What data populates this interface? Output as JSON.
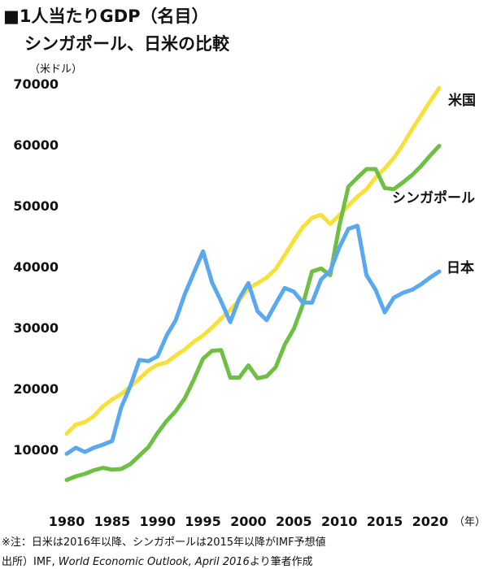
{
  "title": {
    "line1": "■1人当たりGDP（名目）",
    "line2": "シンガポール、日米の比較"
  },
  "unit_label": "（米ドル）",
  "x_unit_label": "（年）",
  "note": "※注：日米は2016年以降、シンガポールは2015年以降がIMF予想値",
  "source": {
    "prefix": "出所）IMF, ",
    "italic": "World Economic Outlook, April 2016",
    "suffix": "より筆者作成"
  },
  "chart_data": {
    "type": "line",
    "x": [
      1980,
      1981,
      1982,
      1983,
      1984,
      1985,
      1986,
      1987,
      1988,
      1989,
      1990,
      1991,
      1992,
      1993,
      1994,
      1995,
      1996,
      1997,
      1998,
      1999,
      2000,
      2001,
      2002,
      2003,
      2004,
      2005,
      2006,
      2007,
      2008,
      2009,
      2010,
      2011,
      2012,
      2013,
      2014,
      2015,
      2016,
      2017,
      2018,
      2019,
      2020,
      2021
    ],
    "xlim": [
      1980,
      2021
    ],
    "ylim": [
      0,
      70000
    ],
    "yticks": [
      10000,
      20000,
      30000,
      40000,
      50000,
      60000,
      70000
    ],
    "xticks": [
      1980,
      1985,
      1990,
      1995,
      2000,
      2005,
      2010,
      2015,
      2020
    ],
    "grid": false,
    "series": [
      {
        "name": "米国",
        "color": "#f7e03a",
        "values": [
          12600,
          14100,
          14500,
          15500,
          17100,
          18200,
          19100,
          20300,
          21600,
          23000,
          23900,
          24300,
          25400,
          26400,
          27700,
          28700,
          30000,
          31500,
          32900,
          34500,
          36400,
          37300,
          38200,
          39600,
          41900,
          44300,
          46500,
          48000,
          48500,
          47000,
          48400,
          50000,
          51500,
          52700,
          54600,
          56100,
          57800,
          60000,
          62500,
          64800,
          67100,
          69300
        ]
      },
      {
        "name": "シンガポール",
        "color": "#6ec044",
        "values": [
          5000,
          5600,
          6000,
          6600,
          7000,
          6700,
          6800,
          7600,
          9000,
          10400,
          12700,
          14700,
          16300,
          18400,
          21500,
          24900,
          26200,
          26300,
          21800,
          21800,
          23800,
          21700,
          22000,
          23500,
          27200,
          29800,
          33800,
          39200,
          39700,
          38600,
          46600,
          53100,
          54600,
          56000,
          56000,
          52900,
          52700,
          53800,
          55000,
          56500,
          58200,
          59800
        ]
      },
      {
        "name": "日本",
        "color": "#5aa9f0",
        "values": [
          9300,
          10300,
          9600,
          10300,
          10800,
          11400,
          16900,
          20400,
          24700,
          24500,
          25300,
          28700,
          31200,
          35500,
          39000,
          42500,
          37400,
          34300,
          30900,
          34800,
          37300,
          32700,
          31200,
          33900,
          36500,
          35900,
          34100,
          34100,
          37900,
          39300,
          43100,
          46200,
          46700,
          38600,
          36200,
          32500,
          34900,
          35700,
          36200,
          37100,
          38200,
          39200
        ]
      }
    ],
    "series_labels": [
      "米国",
      "シンガポール",
      "日本"
    ]
  }
}
